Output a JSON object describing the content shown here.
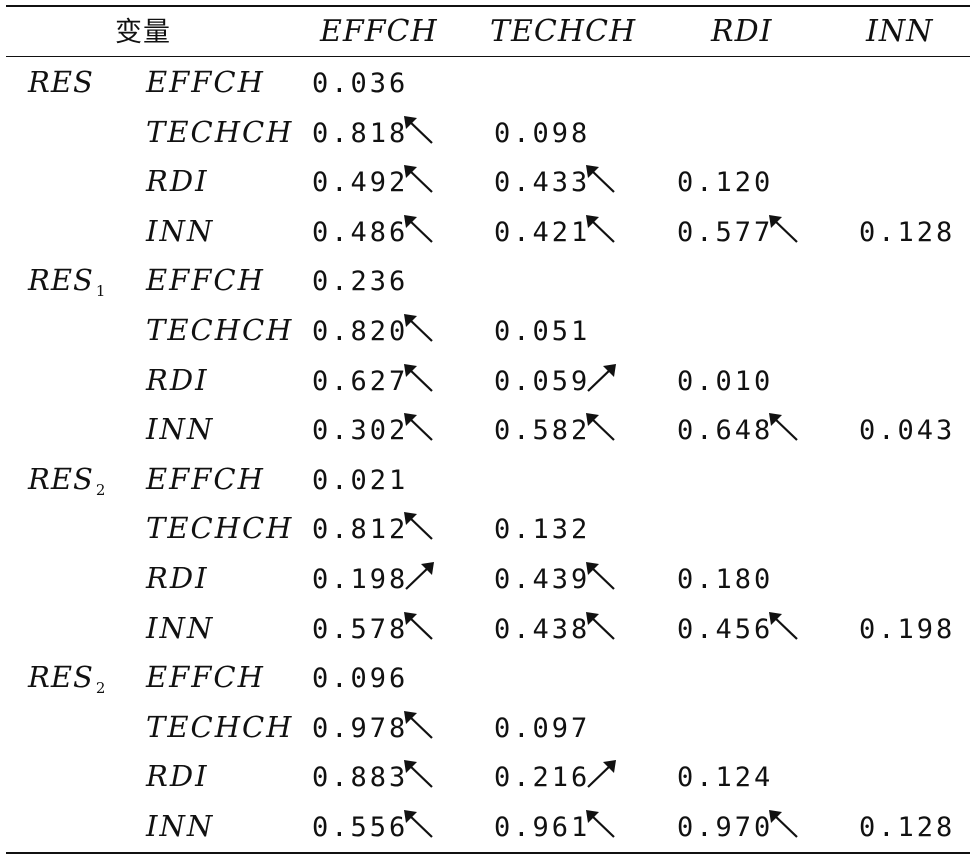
{
  "header": {
    "corner": "变量",
    "columns": [
      "EFFCH",
      "TECHCH",
      "RDI",
      "INN"
    ]
  },
  "groups": [
    {
      "name": "RES",
      "sub": "",
      "rows": [
        {
          "var": "EFFCH",
          "cells": [
            {
              "v": "0.036",
              "a": ""
            }
          ]
        },
        {
          "var": "TECHCH",
          "cells": [
            {
              "v": "0.818",
              "a": "nw"
            },
            {
              "v": "0.098",
              "a": ""
            }
          ]
        },
        {
          "var": "RDI",
          "cells": [
            {
              "v": "0.492",
              "a": "nw"
            },
            {
              "v": "0.433",
              "a": "nw"
            },
            {
              "v": "0.120",
              "a": ""
            }
          ]
        },
        {
          "var": "INN",
          "cells": [
            {
              "v": "0.486",
              "a": "nw"
            },
            {
              "v": "0.421",
              "a": "nw"
            },
            {
              "v": "0.577",
              "a": "nw"
            },
            {
              "v": "0.128",
              "a": ""
            }
          ]
        }
      ]
    },
    {
      "name": "RES",
      "sub": "1",
      "rows": [
        {
          "var": "EFFCH",
          "cells": [
            {
              "v": "0.236",
              "a": ""
            }
          ]
        },
        {
          "var": "TECHCH",
          "cells": [
            {
              "v": "0.820",
              "a": "nw"
            },
            {
              "v": "0.051",
              "a": ""
            }
          ]
        },
        {
          "var": "RDI",
          "cells": [
            {
              "v": "0.627",
              "a": "nw"
            },
            {
              "v": "0.059",
              "a": "ne"
            },
            {
              "v": "0.010",
              "a": ""
            }
          ]
        },
        {
          "var": "INN",
          "cells": [
            {
              "v": "0.302",
              "a": "nw"
            },
            {
              "v": "0.582",
              "a": "nw"
            },
            {
              "v": "0.648",
              "a": "nw"
            },
            {
              "v": "0.043",
              "a": ""
            }
          ]
        }
      ]
    },
    {
      "name": "RES",
      "sub": "2",
      "rows": [
        {
          "var": "EFFCH",
          "cells": [
            {
              "v": "0.021",
              "a": ""
            }
          ]
        },
        {
          "var": "TECHCH",
          "cells": [
            {
              "v": "0.812",
              "a": "nw"
            },
            {
              "v": "0.132",
              "a": ""
            }
          ]
        },
        {
          "var": "RDI",
          "cells": [
            {
              "v": "0.198",
              "a": "ne"
            },
            {
              "v": "0.439",
              "a": "nw"
            },
            {
              "v": "0.180",
              "a": ""
            }
          ]
        },
        {
          "var": "INN",
          "cells": [
            {
              "v": "0.578",
              "a": "nw"
            },
            {
              "v": "0.438",
              "a": "nw"
            },
            {
              "v": "0.456",
              "a": "nw"
            },
            {
              "v": "0.198",
              "a": ""
            }
          ]
        }
      ]
    },
    {
      "name": "RES",
      "sub": "2",
      "rows": [
        {
          "var": "EFFCH",
          "cells": [
            {
              "v": "0.096",
              "a": ""
            }
          ]
        },
        {
          "var": "TECHCH",
          "cells": [
            {
              "v": "0.978",
              "a": "nw"
            },
            {
              "v": "0.097",
              "a": ""
            }
          ]
        },
        {
          "var": "RDI",
          "cells": [
            {
              "v": "0.883",
              "a": "nw"
            },
            {
              "v": "0.216",
              "a": "ne"
            },
            {
              "v": "0.124",
              "a": ""
            }
          ]
        },
        {
          "var": "INN",
          "cells": [
            {
              "v": "0.556",
              "a": "nw"
            },
            {
              "v": "0.961",
              "a": "nw"
            },
            {
              "v": "0.970",
              "a": "nw"
            },
            {
              "v": "0.128",
              "a": ""
            }
          ]
        }
      ]
    }
  ]
}
